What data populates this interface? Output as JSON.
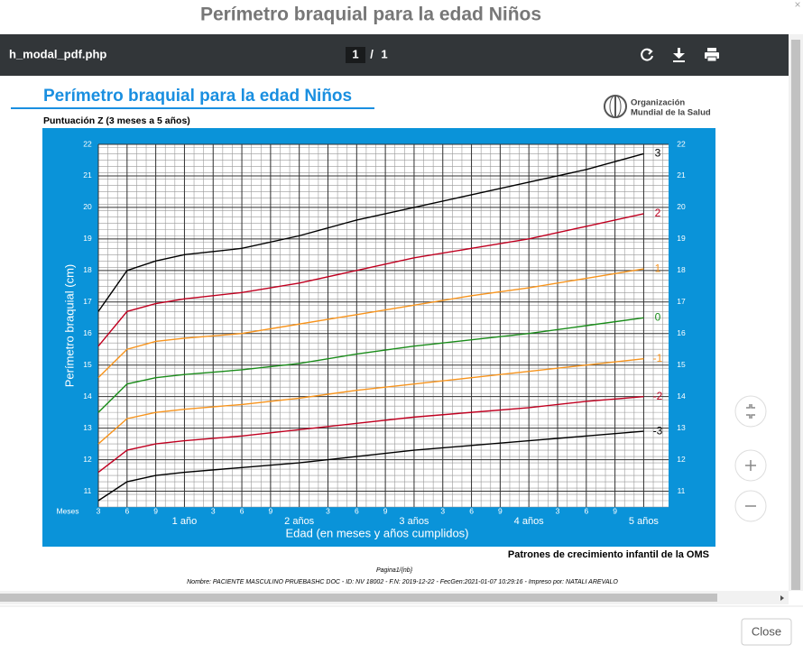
{
  "modal": {
    "title": "Perímetro braquial para la edad Niños",
    "close_icon": "×",
    "close_button": "Close"
  },
  "viewer": {
    "filename": "h_modal_pdf.php",
    "page_current": "1",
    "page_separator": "/",
    "page_total": "1"
  },
  "document": {
    "heading": "Perímetro braquial para la edad Niños",
    "subtitle": "Puntuación Z (3 meses a 5 años)",
    "who_line1": "Organización",
    "who_line2": "Mundial de la Salud",
    "source": "Patrones de crecimiento infantil de la OMS",
    "page_footer": "Pagina1/{nb}",
    "patient_line": "Nombre: PACIENTE MASCULINO PRUEBASHC DOC -  ID: NV 18002 - F.N: 2019-12-22 - FecGen:2021-01-07 10:29:16 - Impreso por: NATALI AREVALO"
  },
  "chart_data": {
    "type": "line",
    "ylabel": "Perímetro braquial (cm)",
    "xlabel": "Edad (en meses y años cumplidos)",
    "xtick_unit_label": "Meses",
    "x": [
      3,
      6,
      9,
      12,
      18,
      24,
      30,
      36,
      42,
      48,
      54,
      60
    ],
    "xlim": [
      3,
      62.6
    ],
    "ylim": [
      10.5,
      22
    ],
    "xticks": [
      {
        "value": 3,
        "label": "3"
      },
      6,
      9,
      {
        "value": 12,
        "label": "1 año"
      },
      {
        "value": 15,
        "label": "3"
      },
      {
        "value": 18,
        "label": "6"
      },
      {
        "value": 21,
        "label": "9"
      },
      {
        "value": 24,
        "label": "2 años"
      },
      {
        "value": 27,
        "label": "3"
      },
      {
        "value": 30,
        "label": "6"
      },
      {
        "value": 33,
        "label": "9"
      },
      {
        "value": 36,
        "label": "3 años"
      },
      {
        "value": 39,
        "label": "3"
      },
      {
        "value": 42,
        "label": "6"
      },
      {
        "value": 45,
        "label": "9"
      },
      {
        "value": 48,
        "label": "4 años"
      },
      {
        "value": 51,
        "label": "3"
      },
      {
        "value": 54,
        "label": "6"
      },
      {
        "value": 57,
        "label": "9"
      },
      {
        "value": 60,
        "label": "5 años"
      }
    ],
    "yticks": [
      11,
      12,
      13,
      14,
      15,
      16,
      17,
      18,
      19,
      20,
      21,
      22
    ],
    "xminor_step": 1,
    "yminor_step": 0.2,
    "grid": true,
    "series": [
      {
        "name": "3",
        "color": "#000000",
        "values": [
          16.7,
          18.0,
          18.3,
          18.5,
          18.7,
          19.1,
          19.6,
          20.0,
          20.4,
          20.8,
          21.2,
          21.7
        ]
      },
      {
        "name": "2",
        "color": "#c00020",
        "values": [
          15.6,
          16.7,
          16.95,
          17.1,
          17.3,
          17.6,
          18.0,
          18.4,
          18.7,
          19.0,
          19.4,
          19.8
        ]
      },
      {
        "name": "1",
        "color": "#f7941d",
        "values": [
          14.6,
          15.5,
          15.75,
          15.85,
          16.0,
          16.3,
          16.6,
          16.9,
          17.2,
          17.45,
          17.75,
          18.05
        ]
      },
      {
        "name": "0",
        "color": "#1a8c1a",
        "values": [
          13.5,
          14.4,
          14.6,
          14.7,
          14.85,
          15.05,
          15.35,
          15.6,
          15.8,
          16.0,
          16.25,
          16.5
        ]
      },
      {
        "name": "-1",
        "color": "#f7941d",
        "values": [
          12.5,
          13.3,
          13.5,
          13.6,
          13.75,
          13.95,
          14.2,
          14.4,
          14.6,
          14.8,
          15.0,
          15.2
        ]
      },
      {
        "name": "-2",
        "color": "#c00020",
        "values": [
          11.6,
          12.3,
          12.5,
          12.6,
          12.75,
          12.95,
          13.15,
          13.35,
          13.5,
          13.65,
          13.85,
          14.0
        ]
      },
      {
        "name": "-3",
        "color": "#000000",
        "values": [
          10.7,
          11.3,
          11.5,
          11.6,
          11.75,
          11.9,
          12.1,
          12.3,
          12.45,
          12.6,
          12.75,
          12.9
        ]
      }
    ]
  }
}
